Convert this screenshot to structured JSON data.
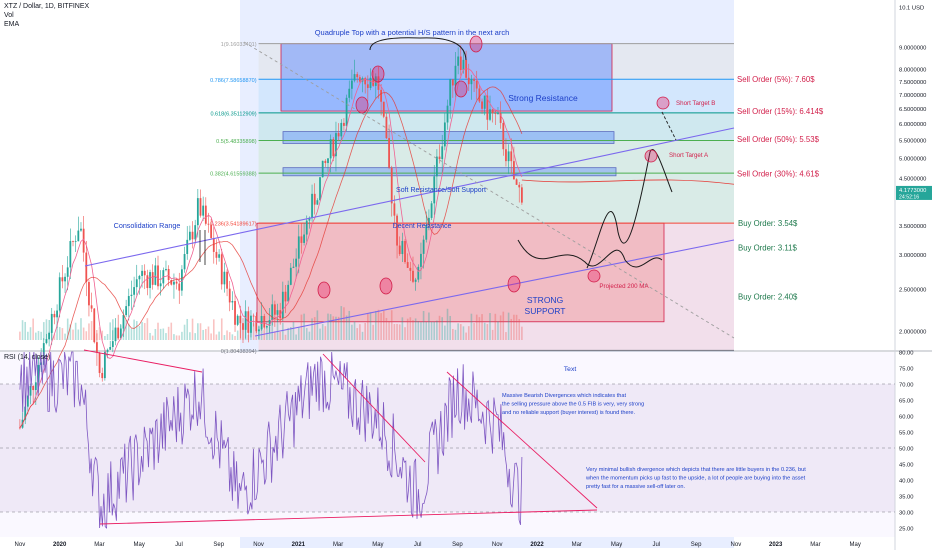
{
  "header": {
    "symbol_line": "XTZ / Dollar, 1D, BITFINEX",
    "vol_label": "Vol",
    "ema_label": "EMA"
  },
  "rsi_header": "RSI (14, close)",
  "colors": {
    "candle_up": "#26a69a",
    "candle_down": "#ef5350",
    "resistance_box": "#2962ff",
    "support_box": "#ef5350",
    "annotation_blue": "#1e40c8",
    "annotation_red": "#d21f4a",
    "trendline_purple": "#7b68ee",
    "rsi_line": "#7e57c2",
    "rsi_band": "#ede7f6"
  },
  "chart_data": [
    {
      "type": "candlestick",
      "title": "XTZ / Dollar, 1D, BITFINEX",
      "price_scale": "log",
      "ylim": [
        1.9,
        10.1
      ],
      "y_ticks": [
        "10.1 USD",
        "9.0000000",
        "8.0000000",
        "7.5000000",
        "7.0000000",
        "6.5000000",
        "6.0000000",
        "5.5000000",
        "5.0000000",
        "4.5000000",
        "3.5000000",
        "3.0000000",
        "2.5000000",
        "2.0000000"
      ],
      "last_price": "4.1773000",
      "last_price_sub": "24:52:16",
      "x_ticks": [
        "Nov",
        "2020",
        "Mar",
        "May",
        "Jul",
        "Sep",
        "Nov",
        "2021",
        "Mar",
        "May",
        "Jul",
        "Sep",
        "Nov",
        "2022",
        "Mar",
        "May",
        "Jul",
        "Sep",
        "Nov",
        "2023",
        "Mar",
        "May"
      ],
      "approx_close_path": [
        {
          "t": "2019-11",
          "close": 1.2
        },
        {
          "t": "2020-02",
          "close": 3.6
        },
        {
          "t": "2020-03",
          "close": 1.6
        },
        {
          "t": "2020-05",
          "close": 2.7
        },
        {
          "t": "2020-07",
          "close": 2.6
        },
        {
          "t": "2020-08",
          "close": 3.9
        },
        {
          "t": "2020-10",
          "close": 2.1
        },
        {
          "t": "2020-12",
          "close": 2.2
        },
        {
          "t": "2021-02",
          "close": 4.3
        },
        {
          "t": "2021-04",
          "close": 7.9
        },
        {
          "t": "2021-05",
          "close": 7.5
        },
        {
          "t": "2021-06",
          "close": 3.2
        },
        {
          "t": "2021-07",
          "close": 2.6
        },
        {
          "t": "2021-08",
          "close": 4.9
        },
        {
          "t": "2021-09",
          "close": 8.9
        },
        {
          "t": "2021-10",
          "close": 6.8
        },
        {
          "t": "2021-11",
          "close": 6.1
        },
        {
          "t": "2021-12",
          "close": 4.2
        }
      ],
      "fib_levels": [
        {
          "label": "1(9.16033401)",
          "value": 9.16033401
        },
        {
          "label": "0.786(7.58658870)",
          "value": 7.5865887
        },
        {
          "label": "0.618(6.35112909)",
          "value": 6.35112909
        },
        {
          "label": "0.5(5.48335898)",
          "value": 5.48335898
        },
        {
          "label": "0.382(4.61559388)",
          "value": 4.61559388
        },
        {
          "label": "0.236(3.54189617)",
          "value": 3.54189617
        },
        {
          "label": "0(1.80438394)",
          "value": 1.80438394
        }
      ],
      "zones": [
        {
          "name": "Strong Resistance",
          "low": 6.41,
          "high": 9.16
        },
        {
          "name": "Soft Resistance/Soft Support",
          "low": 5.4,
          "high": 5.75
        },
        {
          "name": "Decent Resistance",
          "low": 4.55,
          "high": 4.75
        },
        {
          "name": "STRONG SUPPORT",
          "low": 2.1,
          "high": 3.54
        }
      ],
      "annotations": [
        "Quadruple Top with a potential H/S pattern in the next arch",
        "Strong Resistance",
        "Soft Resistance/Soft Support",
        "Decent Resistance",
        "Consolidation Range",
        "STRONG",
        "SUPPORT",
        "Projected 200 MA",
        "Short Target B",
        "Short Target A"
      ],
      "orders": [
        {
          "label": "Sell Order (5%): 7.60$",
          "price": 7.6
        },
        {
          "label": "Sell Order (15%): 6.414$",
          "price": 6.414
        },
        {
          "label": "Sell Order (50%): 5.53$",
          "price": 5.53
        },
        {
          "label": "Sell Order (30%): 4.61$",
          "price": 4.61
        },
        {
          "label": "Buy Order:  3.54$",
          "price": 3.54
        },
        {
          "label": "Buy Order: 3.11$",
          "price": 3.11
        },
        {
          "label": "Buy Order: 2.40$",
          "price": 2.4
        }
      ]
    },
    {
      "type": "line",
      "title": "RSI (14, close)",
      "ylim": [
        28,
        80
      ],
      "y_ticks": [
        "80.00",
        "75.00",
        "70.00",
        "65.00",
        "60.00",
        "55.00",
        "50.00",
        "45.00",
        "40.00",
        "35.00",
        "30.00",
        "25.00"
      ],
      "bands": {
        "upper": 70,
        "lower": 30
      },
      "approx_values": [
        {
          "t": "2020-02",
          "rsi": 79
        },
        {
          "t": "2020-03",
          "rsi": 26
        },
        {
          "t": "2020-08",
          "rsi": 74
        },
        {
          "t": "2020-10",
          "rsi": 29
        },
        {
          "t": "2021-02",
          "rsi": 80
        },
        {
          "t": "2021-05",
          "rsi": 63
        },
        {
          "t": "2021-07",
          "rsi": 30
        },
        {
          "t": "2021-09",
          "rsi": 75
        },
        {
          "t": "2021-11",
          "rsi": 60
        },
        {
          "t": "2021-12",
          "rsi": 32
        }
      ],
      "annotations": [
        "Text",
        "Massive Bearish Divergences which indicates that",
        "the selling pressure above the 0.5 FIB is very, very strong",
        "and no reliable support (buyer interest) is found there.",
        "Very minimal bullish divergence which depicts that there are little buyers in the 0.236, but",
        "when the momentum picks up fast to the upside, a lot of people are buying into the asset",
        "pretty fast for a massive sell-off later on."
      ]
    }
  ]
}
